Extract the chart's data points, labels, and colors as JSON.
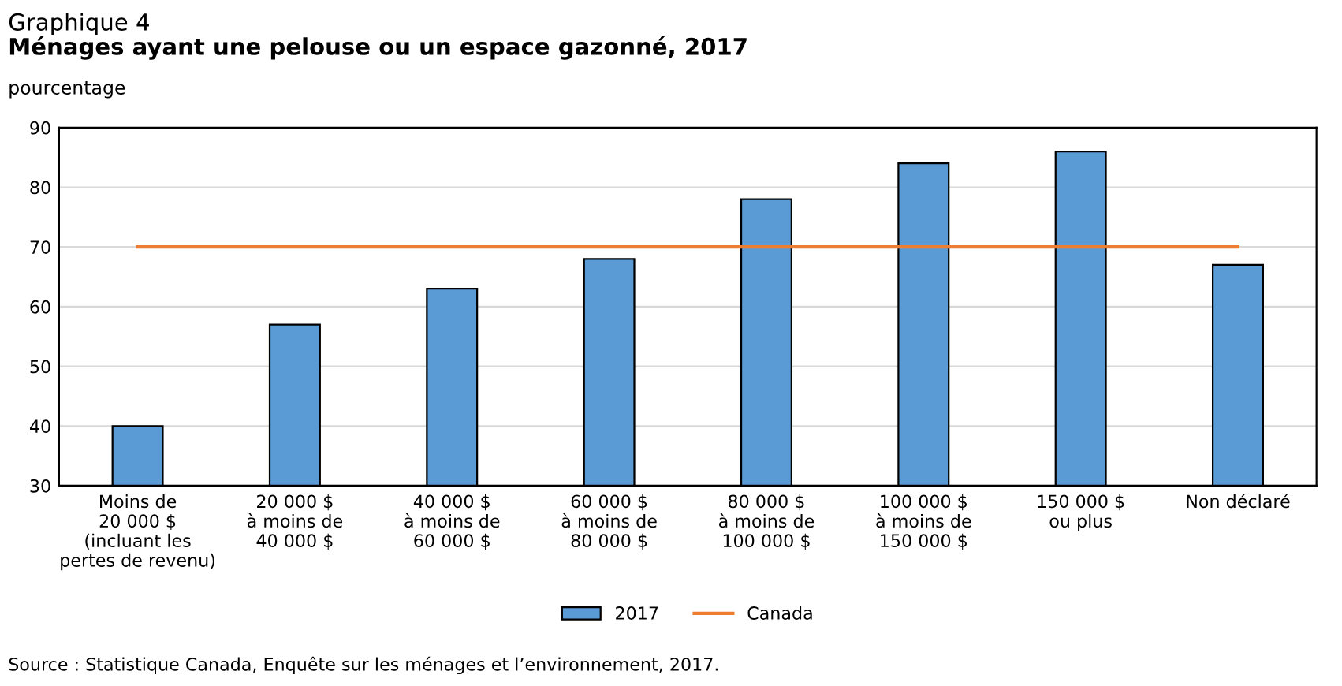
{
  "chart_data": {
    "type": "bar",
    "title": "Graphique 4",
    "subtitle": "Ménages ayant une pelouse ou un espace gazonné, 2017",
    "ylabel": "pourcentage",
    "categories": [
      "Moins de\n20 000 $\n(incluant les\npertes de revenu)",
      "20 000 $\nà moins de\n40 000 $",
      "40 000 $\nà moins de\n60 000 $",
      "60 000 $\nà moins de\n80 000 $",
      "80 000 $\nà moins de\n100 000 $",
      "100 000 $\nà moins de\n150 000 $",
      "150 000 $\nou plus",
      "Non déclaré"
    ],
    "series": [
      {
        "name": "2017",
        "color": "#5b9bd5",
        "values": [
          40,
          57,
          63,
          68,
          78,
          84,
          86,
          67
        ]
      },
      {
        "name": "Canada",
        "type": "line",
        "color": "#ed7d31",
        "values": [
          70,
          70,
          70,
          70,
          70,
          70,
          70,
          70
        ]
      }
    ],
    "ylim": [
      30,
      90
    ],
    "yticks": [
      30,
      40,
      50,
      60,
      70,
      80,
      90
    ],
    "grid": "y",
    "legend": "bottom",
    "marker": "none",
    "annotations": [
      "Source : Statistique Canada, Enquête sur les ménages et l’environnement, 2017."
    ]
  }
}
